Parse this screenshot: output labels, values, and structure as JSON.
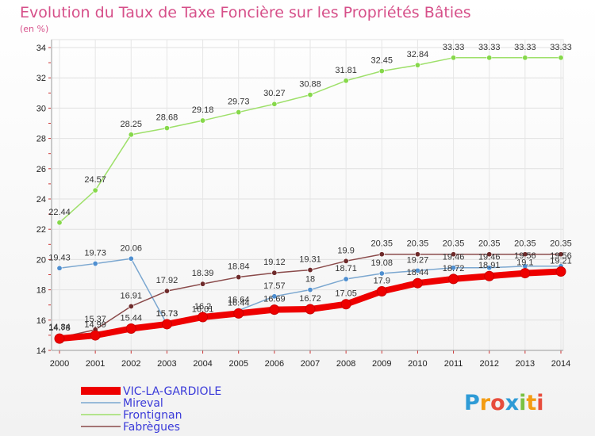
{
  "chart_data": {
    "type": "line",
    "title": "Evolution du Taux de Taxe Foncière sur les Propriétés Bâties",
    "subtitle": "(en %)",
    "xlabel": "",
    "ylabel": "",
    "ylim": [
      14,
      34
    ],
    "yticks": [
      14,
      16,
      18,
      20,
      22,
      24,
      26,
      28,
      30,
      32,
      34
    ],
    "x": [
      "2000",
      "2001",
      "2002",
      "2003",
      "2004",
      "2005",
      "2006",
      "2007",
      "2008",
      "2009",
      "2010",
      "2011",
      "2012",
      "2013",
      "2014"
    ],
    "grid": true,
    "legend_position": "bottom-left",
    "series": [
      {
        "name": "Frontignan",
        "key": "frontignan",
        "color": "#9ee06a",
        "marker": "#86d84a",
        "values": [
          22.44,
          24.57,
          28.25,
          28.68,
          29.18,
          29.73,
          30.27,
          30.88,
          31.81,
          32.45,
          32.84,
          33.33,
          33.33,
          33.33,
          33.33
        ],
        "labels": [
          "22.44",
          "24.57",
          "28.25",
          "28.68",
          "29.18",
          "29.73",
          "30.27",
          "30.88",
          "31.81",
          "32.45",
          "32.84",
          "33.33",
          "33.33",
          "33.33",
          "33.33"
        ]
      },
      {
        "name": "Mireval",
        "key": "mireval",
        "color": "#7ba7d0",
        "marker": "#4f8fd0",
        "values": [
          19.43,
          19.73,
          20.06,
          15.73,
          16.01,
          16.64,
          17.57,
          18,
          18.71,
          19.08,
          19.27,
          19.46,
          19.46,
          19.56,
          19.56
        ],
        "labels": [
          "19.43",
          "19.73",
          "20.06",
          "15.73",
          "16.01",
          "16.64",
          "17.57",
          "18",
          "18.71",
          "19.08",
          "19.27",
          "19.46",
          "19.46",
          "19.56",
          "19.56"
        ]
      },
      {
        "name": "Fabrègues",
        "key": "fabregues",
        "color": "#8a4a4a",
        "marker": "#6e2a2a",
        "values": [
          14.84,
          15.37,
          16.91,
          17.92,
          18.39,
          18.84,
          19.12,
          19.31,
          19.9,
          20.35,
          20.35,
          20.35,
          20.35,
          20.35,
          20.35
        ],
        "labels": [
          "14.84",
          "15.37",
          "16.91",
          "17.92",
          "18.39",
          "18.84",
          "19.12",
          "19.31",
          "19.9",
          "20.35",
          "20.35",
          "20.35",
          "20.35",
          "20.35",
          "20.35"
        ]
      },
      {
        "name": "VIC-LA-GARDIOLE",
        "key": "vic",
        "color": "#ee0000",
        "marker": "#ee0000",
        "values": [
          14.78,
          14.99,
          15.44,
          15.73,
          16.2,
          16.44,
          16.69,
          16.72,
          17.05,
          17.9,
          18.44,
          18.72,
          18.91,
          19.1,
          19.21
        ],
        "labels": [
          "14.78",
          "14.99",
          "15.44",
          "15.73",
          "16.2",
          "16.44",
          "16.69",
          "16.72",
          "17.05",
          "17.9",
          "18.44",
          "18.72",
          "18.91",
          "19.1",
          "19.21"
        ]
      }
    ]
  },
  "legend": {
    "items": [
      {
        "label": "VIC-LA-GARDIOLE",
        "color": "#ee0000"
      },
      {
        "label": "Mireval",
        "color": "#7ba7d0"
      },
      {
        "label": "Frontignan",
        "color": "#9ee06a"
      },
      {
        "label": "Fabrègues",
        "color": "#8a4a4a"
      }
    ]
  },
  "logo": {
    "text": "Proxiti",
    "letters": [
      {
        "ch": "P",
        "color": "#2e9bd6"
      },
      {
        "ch": "r",
        "color": "#f39c12"
      },
      {
        "ch": "o",
        "color": "#e74c3c"
      },
      {
        "ch": "x",
        "color": "#2e9bd6"
      },
      {
        "ch": "i",
        "color": "#7ac143"
      },
      {
        "ch": "t",
        "color": "#f39c12"
      },
      {
        "ch": "i",
        "color": "#e74c3c"
      }
    ]
  }
}
